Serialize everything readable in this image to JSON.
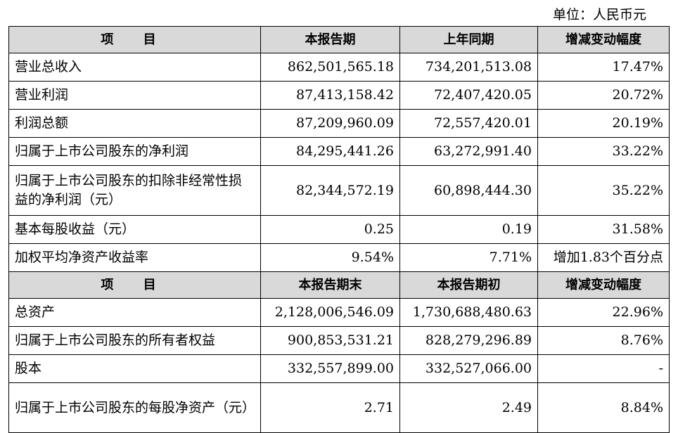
{
  "unit_label": "单位：人民币元",
  "section1": {
    "headers": [
      "项 目",
      "本报告期",
      "上年同期",
      "增减变动幅度"
    ],
    "rows": [
      [
        "营业总收入",
        "862,501,565.18",
        "734,201,513.08",
        "17.47%"
      ],
      [
        "营业利润",
        "87,413,158.42",
        "72,407,420.05",
        "20.72%"
      ],
      [
        "利润总额",
        "87,209,960.09",
        "72,557,420.01",
        "20.19%"
      ],
      [
        "归属于上市公司股东的净利润",
        "84,295,441.26",
        "63,272,991.40",
        "33.22%"
      ],
      [
        "归属于上市公司股东的扣除非经常性损益的净利润（元）",
        "82,344,572.19",
        "60,898,444.30",
        "35.22%"
      ],
      [
        "基本每股收益（元）",
        "0.25",
        "0.19",
        "31.58%"
      ],
      [
        "加权平均净资产收益率",
        "9.54%",
        "7.71%",
        "增加1.83个百分点"
      ]
    ]
  },
  "section2": {
    "headers": [
      "项 目",
      "本报告期末",
      "本报告期初",
      "增减变动幅度"
    ],
    "rows": [
      [
        "总资产",
        "2,128,006,546.09",
        "1,730,688,480.63",
        "22.96%"
      ],
      [
        "归属于上市公司股东的所有者权益",
        "900,853,531.21",
        "828,279,296.89",
        "8.76%"
      ],
      [
        "股本",
        "332,557,899.00",
        "332,527,066.00",
        "-"
      ],
      [
        "归属于上市公司股东的每股净资产（元）",
        "2.71",
        "2.49",
        "8.84%"
      ]
    ]
  }
}
